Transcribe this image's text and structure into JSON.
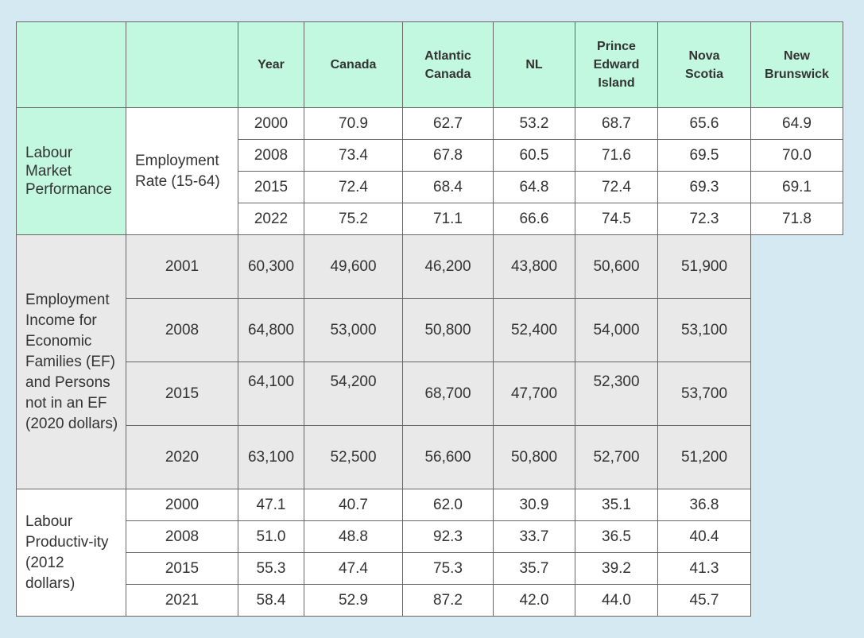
{
  "headers": [
    "",
    "",
    "Year",
    "Canada",
    "Atlantic Canada",
    "NL",
    "Prince Edward Island",
    "Nova Scotia",
    "New Brunswick"
  ],
  "category": "Labour Market Performance",
  "groups": [
    {
      "label": "Employment Rate (15-64)",
      "rows": [
        {
          "year": "2000",
          "values": [
            "70.9",
            "62.7",
            "53.2",
            "68.7",
            "65.6",
            "64.9"
          ]
        },
        {
          "year": "2008",
          "values": [
            "73.4",
            "67.8",
            "60.5",
            "71.6",
            "69.5",
            "70.0"
          ]
        },
        {
          "year": "2015",
          "values": [
            "72.4",
            "68.4",
            "64.8",
            "72.4",
            "69.3",
            "69.1"
          ]
        },
        {
          "year": "2022",
          "values": [
            "75.2",
            "71.1",
            "66.6",
            "74.5",
            "72.3",
            "71.8"
          ]
        }
      ]
    },
    {
      "label": "Employment Income for Economic Families (EF) and Persons not in an EF (2020 dollars)",
      "rows": [
        {
          "year": "2001",
          "values": [
            "60,300",
            "49,600",
            "46,200",
            "43,800",
            "50,600",
            "51,900"
          ]
        },
        {
          "year": "2008",
          "values": [
            "64,800",
            "53,000",
            "50,800",
            "52,400",
            "54,000",
            "53,100"
          ]
        },
        {
          "year": "2015",
          "values": [
            "64,100",
            "54,200",
            "68,700",
            "47,700",
            "52,300",
            "53,700"
          ]
        },
        {
          "year": "2020",
          "values": [
            "63,100",
            "52,500",
            "56,600",
            "50,800",
            "52,700",
            "51,200"
          ]
        }
      ]
    },
    {
      "label": "Labour Productiv-ity (2012 dollars)",
      "rows": [
        {
          "year": "2000",
          "values": [
            "47.1",
            "40.7",
            "62.0",
            "30.9",
            "35.1",
            "36.8"
          ]
        },
        {
          "year": "2008",
          "values": [
            "51.0",
            "48.8",
            "92.3",
            "33.7",
            "36.5",
            "40.4"
          ]
        },
        {
          "year": "2015",
          "values": [
            "55.3",
            "47.4",
            "75.3",
            "35.7",
            "39.2",
            "41.3"
          ]
        },
        {
          "year": "2021",
          "values": [
            "58.4",
            "52.9",
            "87.2",
            "42.0",
            "44.0",
            "45.7"
          ]
        }
      ]
    }
  ]
}
